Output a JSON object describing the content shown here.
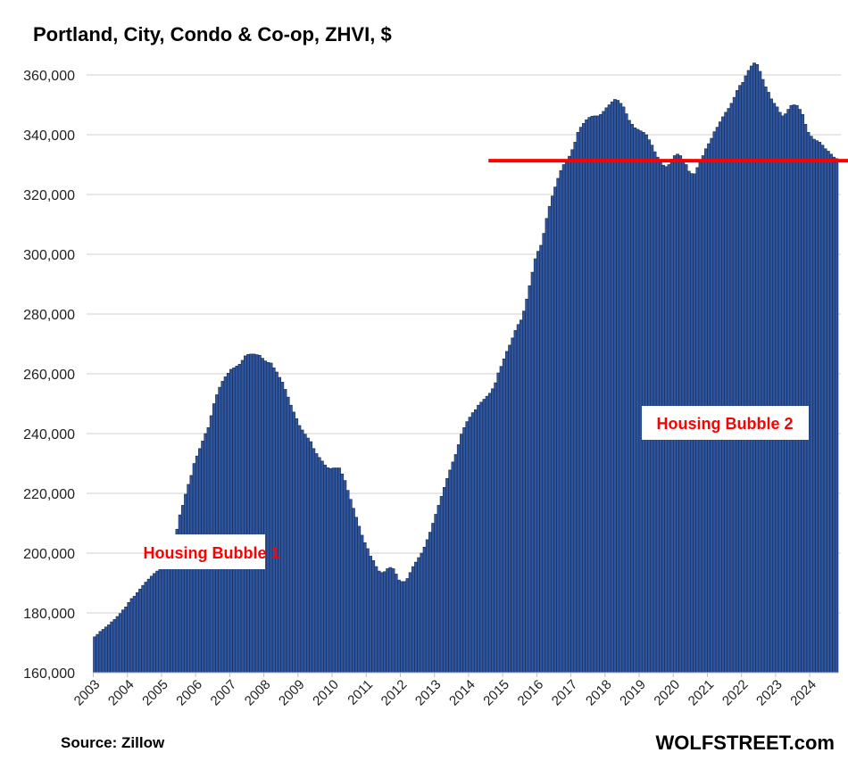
{
  "chart_data": {
    "type": "bar",
    "title": "Portland, City, Condo & Co-op, ZHVI, $",
    "xlabel": "",
    "ylabel": "",
    "ylim": [
      160000,
      360000
    ],
    "yticks": [
      160000,
      180000,
      200000,
      220000,
      240000,
      260000,
      280000,
      300000,
      320000,
      340000,
      360000
    ],
    "ytick_labels": [
      "160,000",
      "180,000",
      "200,000",
      "220,000",
      "240,000",
      "260,000",
      "280,000",
      "300,000",
      "320,000",
      "340,000",
      "360,000"
    ],
    "xtick_labels": [
      "2003",
      "2004",
      "2005",
      "2006",
      "2007",
      "2008",
      "2009",
      "2010",
      "2011",
      "2012",
      "2013",
      "2014",
      "2015",
      "2016",
      "2017",
      "2018",
      "2019",
      "2020",
      "2021",
      "2022",
      "2023",
      "2024"
    ],
    "frequency": "monthly",
    "start": "2003-01",
    "grid": true,
    "bar_color": "#2e55a0",
    "values_by_year": {
      "2003": [
        172000,
        172800,
        173800,
        174500,
        175300,
        176000,
        177000,
        177800,
        178800,
        179800,
        181000,
        182000
      ],
      "2004": [
        183500,
        184800,
        185600,
        186800,
        188000,
        189200,
        190300,
        191300,
        192300,
        193200,
        194000,
        194500
      ],
      "2005": [
        195000,
        195500,
        196000,
        197000,
        201000,
        208000,
        212800,
        216000,
        219700,
        223000,
        226000,
        230000
      ],
      "2006": [
        232500,
        235000,
        237500,
        240000,
        242000,
        246000,
        250000,
        253000,
        255500,
        257500,
        259000,
        260200
      ],
      "2007": [
        261500,
        262000,
        262600,
        263200,
        264500,
        266000,
        266500,
        266600,
        266600,
        266400,
        266200,
        265200
      ],
      "2008": [
        264300,
        263800,
        263600,
        262000,
        260600,
        258800,
        257200,
        254800,
        252200,
        249500,
        247200,
        245000
      ],
      "2009": [
        242700,
        241200,
        239800,
        238500,
        237300,
        235000,
        233300,
        232000,
        230800,
        229500,
        228600,
        228300
      ],
      "2010": [
        228500,
        228500,
        228500,
        226500,
        224300,
        221000,
        218000,
        215000,
        212000,
        209000,
        206000,
        203500
      ],
      "2011": [
        201500,
        199000,
        197500,
        195500,
        194000,
        193500,
        193800,
        194800,
        195200,
        194800,
        193000,
        191000
      ],
      "2012": [
        190500,
        190500,
        191500,
        193500,
        195500,
        197000,
        198500,
        200000,
        202000,
        204500,
        207000,
        210000
      ],
      "2013": [
        213000,
        216000,
        219000,
        222000,
        225000,
        227800,
        230500,
        233000,
        236300,
        239800,
        242000,
        244000
      ],
      "2014": [
        245500,
        247000,
        248000,
        249500,
        250500,
        251500,
        252500,
        253500,
        255000,
        257000,
        260300,
        262500
      ],
      "2015": [
        265000,
        267500,
        269600,
        272000,
        274500,
        276500,
        278000,
        281000,
        285000,
        289500,
        294000,
        298500
      ],
      "2016": [
        301000,
        303000,
        307000,
        312000,
        316000,
        319500,
        322500,
        325400,
        328000,
        330000,
        331500,
        332800
      ],
      "2017": [
        335000,
        337500,
        340800,
        342500,
        343800,
        345000,
        345800,
        346200,
        346300,
        346300,
        346800,
        347800
      ],
      "2018": [
        349000,
        350000,
        351000,
        351800,
        351500,
        350500,
        349300,
        347000,
        344800,
        343500,
        342300,
        341800
      ],
      "2019": [
        341300,
        340800,
        340000,
        338300,
        336500,
        334300,
        332500,
        330800,
        329800,
        329300,
        330000,
        331800
      ],
      "2020": [
        333000,
        333500,
        333000,
        331800,
        330000,
        327800,
        327000,
        326900,
        329000,
        330800,
        333000,
        335300
      ],
      "2021": [
        337000,
        338800,
        341000,
        342500,
        344300,
        346000,
        347500,
        348800,
        350500,
        352500,
        354800,
        356500
      ],
      "2022": [
        357500,
        359700,
        361500,
        363000,
        364000,
        363500,
        361200,
        358500,
        356000,
        354200,
        352000,
        350500
      ],
      "2023": [
        349300,
        347500,
        346300,
        347000,
        348500,
        349800,
        350000,
        349800,
        348500,
        346800,
        343500,
        340800
      ],
      "2024": [
        339500,
        338500,
        338000,
        337500,
        336500,
        335300,
        334500,
        333500,
        332500,
        332000
      ]
    },
    "reference_line": {
      "value": 331300,
      "from": "2014-08",
      "color": "#ff0000"
    },
    "annotations": [
      {
        "text": "Housing Bubble 1",
        "color": "#ff0000"
      },
      {
        "text": "Housing Bubble 2",
        "color": "#ff0000"
      }
    ]
  },
  "footer": {
    "source": "Source: Zillow",
    "brand": "WOLFSTREET.com"
  }
}
